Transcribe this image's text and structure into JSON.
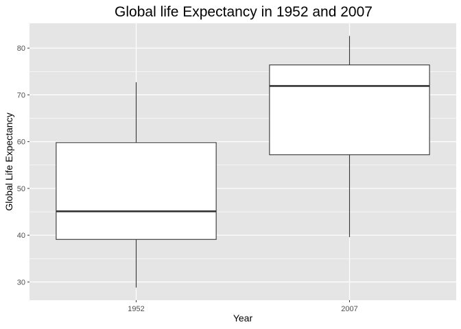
{
  "chart_data": {
    "type": "box",
    "title": "Global life Expectancy in 1952 and 2007",
    "xlabel": "Year",
    "ylabel": "Global Life Expectancy",
    "categories": [
      "1952",
      "2007"
    ],
    "boxes": [
      {
        "category": "1952",
        "min": 28.8,
        "q1": 39.1,
        "median": 45.1,
        "q3": 59.8,
        "max": 72.7
      },
      {
        "category": "2007",
        "min": 39.6,
        "q1": 57.2,
        "median": 71.9,
        "q3": 76.4,
        "max": 82.6
      }
    ],
    "ylim": [
      26.1,
      85.3
    ],
    "yticks": [
      30,
      40,
      50,
      60,
      70,
      80
    ],
    "grid": true,
    "legend": "none",
    "colors": {
      "panel_background": "#e5e5e5",
      "grid": "#ffffff",
      "box_fill": "#ffffff",
      "box_stroke": "#333333"
    }
  }
}
